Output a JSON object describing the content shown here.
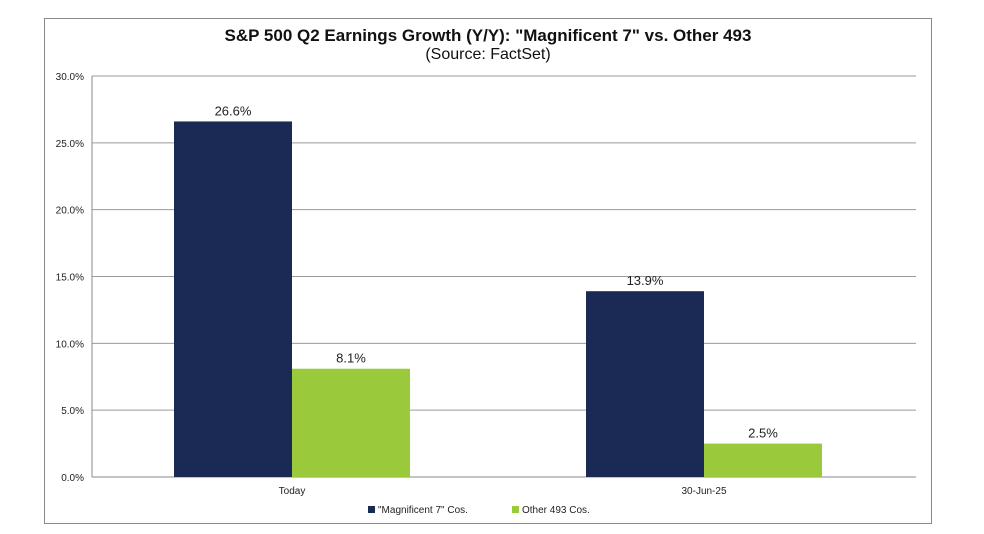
{
  "chart_data": {
    "type": "bar",
    "title": "S&P 500 Q2 Earnings Growth (Y/Y): \"Magnificent 7\" vs. Other 493",
    "subtitle": "(Source: FactSet)",
    "xlabel": "",
    "ylabel": "",
    "categories": [
      "Today",
      "30-Jun-25"
    ],
    "series": [
      {
        "name": "\"Magnificent 7\" Cos.",
        "color": "#1b2a55",
        "values": [
          26.6,
          13.9
        ],
        "labels": [
          "26.6%",
          "13.9%"
        ]
      },
      {
        "name": "Other 493 Cos.",
        "color": "#9bc93c",
        "values": [
          8.1,
          2.5
        ],
        "labels": [
          "8.1%",
          "2.5%"
        ]
      }
    ],
    "ylim": [
      0,
      30
    ],
    "yticks": [
      0,
      5,
      10,
      15,
      20,
      25,
      30
    ],
    "ytick_labels": [
      "0.0%",
      "5.0%",
      "10.0%",
      "15.0%",
      "20.0%",
      "25.0%",
      "30.0%"
    ],
    "grid": true,
    "legend": "bottom-center"
  }
}
